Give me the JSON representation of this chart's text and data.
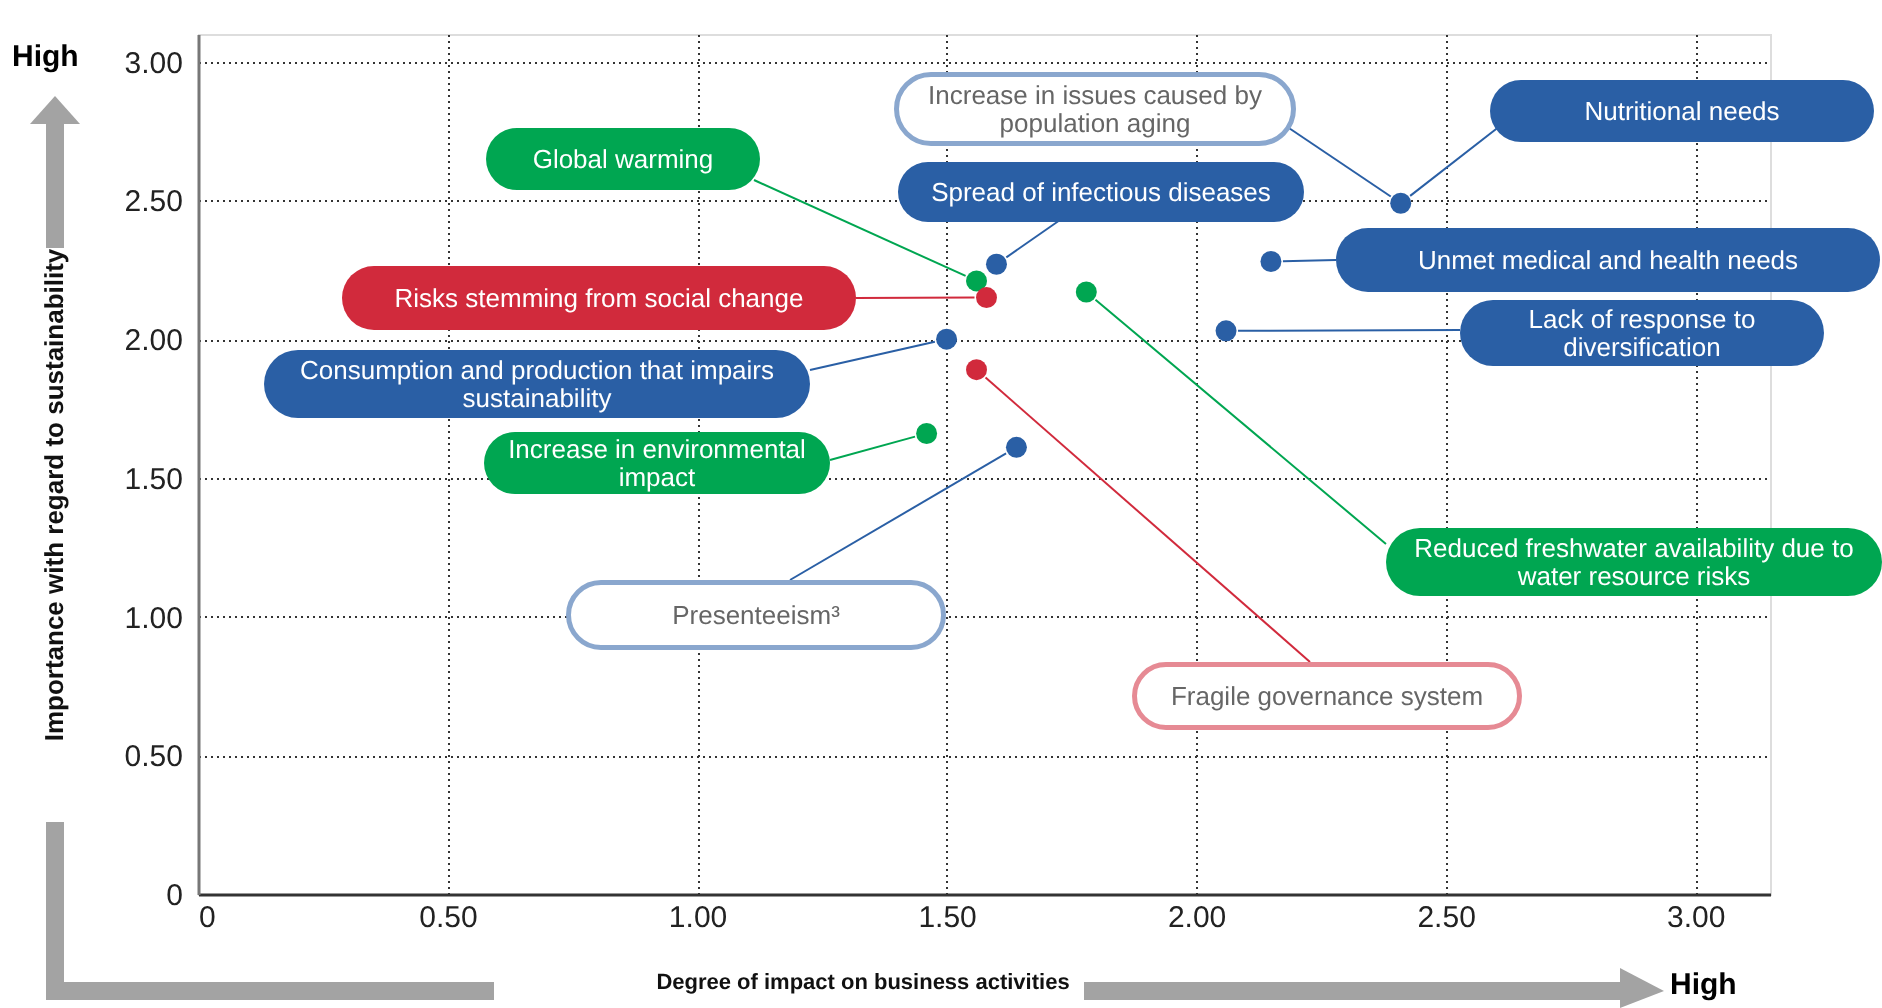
{
  "chart_data": {
    "type": "scatter",
    "xlabel": "Degree of impact on business activities",
    "ylabel": "Importance with regard to sustainability",
    "xlim": [
      0,
      3.15
    ],
    "ylim": [
      0,
      3.1
    ],
    "xticks": [
      0,
      {
        "value": 0.5,
        "label": "0.50"
      },
      {
        "value": 1,
        "label": "1.00"
      },
      {
        "value": 1.5,
        "label": "1.50"
      },
      {
        "value": 2,
        "label": "2.00"
      },
      {
        "value": 2.5,
        "label": "2.50"
      },
      {
        "value": 3,
        "label": "3.00"
      }
    ],
    "yticks": [
      0,
      {
        "value": 0.5,
        "label": "0.50"
      },
      {
        "value": 1,
        "label": "1.00"
      },
      {
        "value": 1.5,
        "label": "1.50"
      },
      {
        "value": 2,
        "label": "2.00"
      },
      {
        "value": 2.5,
        "label": "2.50"
      },
      {
        "value": 3,
        "label": "3.00"
      }
    ],
    "grid": true,
    "marker": "circle",
    "series": [
      {
        "color": "#2a5fa5",
        "x": [
          2.41,
          1.6,
          2.15,
          2.06,
          1.5,
          1.64
        ],
        "values": [
          2.49,
          2.27,
          2.28,
          2.03,
          2.0,
          1.61
        ]
      },
      {
        "color": "#00a651",
        "x": [
          1.56,
          1.78,
          1.46
        ],
        "values": [
          2.21,
          2.17,
          1.66
        ]
      },
      {
        "color": "#d12a3c",
        "x": [
          1.58,
          1.56
        ],
        "values": [
          2.15,
          1.89
        ]
      }
    ],
    "annotations": [
      "Nutritional needs",
      {
        "text": "Increase in issues caused by population aging",
        "x": 2.41,
        "y": 2.49
      },
      {
        "text": "Spread of infectious diseases",
        "x": 1.6,
        "y": 2.27
      },
      "Global warming",
      "Unmet medical and health needs",
      "Risks stemming from social change",
      "Lack of response to diversification",
      "Consumption and production that impairs sustainability",
      {
        "text": "Increase in environmental impact",
        "x": 1.46,
        "y": 1.66
      },
      {
        "text": "Presenteeism³",
        "x": 1.64,
        "y": 1.61
      },
      {
        "text": "Reduced freshwater availability due to water resource risks",
        "x": 1.78,
        "y": 2.17
      },
      {
        "text": "Fragile governance system",
        "x": 1.56,
        "y": 1.89
      },
      "High",
      "High"
    ]
  }
}
